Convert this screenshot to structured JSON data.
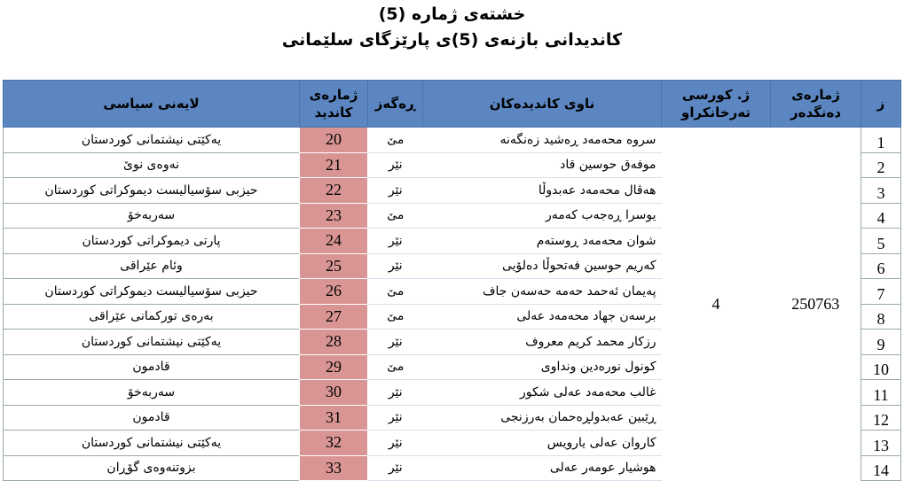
{
  "header": {
    "title": "خشتەی ژمارە (5)",
    "subtitle": "کاندیدانی بازنەی (5)ی پارێزگای سلێمانی"
  },
  "table": {
    "columns": [
      "ز",
      "ژمارەی دەنگدەر",
      "ژ. کورسی تەرخانکراو",
      "ناوی کاندیدەکان",
      "ڕەگەز",
      "ژمارەی کاندید",
      "لایەنی سیاسی"
    ],
    "voters": 250763,
    "seats": 4,
    "rows": [
      [
        1,
        "سروە محەمەد ڕەشید زەنگەنە",
        "مێ",
        20,
        "یەکێتی نیشتمانی کوردستان"
      ],
      [
        2,
        "موفەق حوسین قاد",
        "نێر",
        21,
        "نەوەی نوێ"
      ],
      [
        3,
        "هەڤال محەمەد عەبدوڵا",
        "نێر",
        22,
        "حیزبی سۆسیالیست دیموکراتی کوردستان"
      ],
      [
        4,
        "یوسرا ڕەجەب کەمەر",
        "مێ",
        23,
        "سەربەخۆ"
      ],
      [
        5,
        "شوان محەمەد ڕوستەم",
        "نێر",
        24,
        "پارتی دیموکراتی کوردستان"
      ],
      [
        6,
        "کەریم حوسین فەتحوڵا دەلۆیی",
        "نێر",
        25,
        "وئام عێراقی"
      ],
      [
        7,
        "پەیمان ئەحمد حەمە حەسەن جاف",
        "مێ",
        26,
        "حیزبی سۆسیالیست دیموکراتی کوردستان"
      ],
      [
        8,
        "برسەن جهاد محەمەد عەلی",
        "مێ",
        27,
        "بەرەی تورکمانی عێراقی"
      ],
      [
        9,
        "رزکار محمد کریم معروف",
        "نێر",
        28,
        "یەکێتی نیشتمانی کوردستان"
      ],
      [
        10,
        "کونول نورەدین ونداوی",
        "مێ",
        29,
        "قادمون"
      ],
      [
        11,
        "غالب محەمەد عەلی شکور",
        "نێر",
        30,
        "سەربەخۆ"
      ],
      [
        12,
        "ڕێبین عەبدولڕەحمان بەرزنجی",
        "نێر",
        31,
        "قادمون"
      ],
      [
        13,
        "کاروان عەلی یارویس",
        "نێر",
        32,
        "یەکێتی نیشتمانی کوردستان"
      ],
      [
        14,
        "هوشیار عومەر عەلی",
        "نێر",
        33,
        "بزوتنەوەی گۆڕان"
      ]
    ]
  }
}
